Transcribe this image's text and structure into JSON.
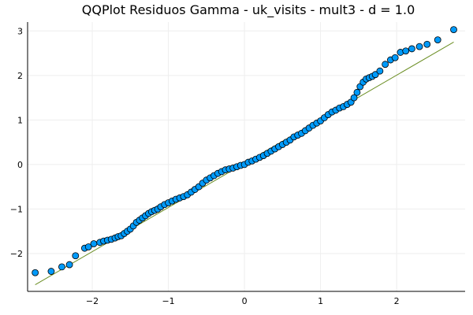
{
  "chart_data": {
    "type": "scatter",
    "title": "QQPlot Residuos Gamma - uk_visits - mult3 - d = 1.0",
    "xlabel": "",
    "ylabel": "",
    "xlim": [
      -2.85,
      2.9
    ],
    "ylim": [
      -2.85,
      3.2
    ],
    "xticks": [
      -2,
      -1,
      0,
      1,
      2
    ],
    "xtick_labels": [
      "−2",
      "−1",
      "0",
      "1",
      "2"
    ],
    "yticks": [
      -2,
      -1,
      0,
      1,
      2,
      3
    ],
    "ytick_labels": [
      "−2",
      "−1",
      "0",
      "1",
      "2",
      "3"
    ],
    "grid": true,
    "legend": "none",
    "colors": {
      "points": "#009AFA",
      "point_stroke": "#000000",
      "reference_line": "#6B8E23",
      "grid": "#eeeeee"
    },
    "series": [
      {
        "kind": "points",
        "x": [
          -2.75,
          -2.54,
          -2.4,
          -2.3,
          -2.22,
          -2.1,
          -2.05,
          -1.98,
          -1.9,
          -1.85,
          -1.8,
          -1.75,
          -1.7,
          -1.66,
          -1.62,
          -1.58,
          -1.54,
          -1.5,
          -1.46,
          -1.42,
          -1.38,
          -1.34,
          -1.3,
          -1.26,
          -1.22,
          -1.18,
          -1.14,
          -1.1,
          -1.05,
          -1.0,
          -0.95,
          -0.9,
          -0.85,
          -0.8,
          -0.75,
          -0.7,
          -0.65,
          -0.6,
          -0.55,
          -0.5,
          -0.45,
          -0.4,
          -0.35,
          -0.3,
          -0.25,
          -0.2,
          -0.15,
          -0.1,
          -0.05,
          0.0,
          0.05,
          0.1,
          0.15,
          0.2,
          0.25,
          0.3,
          0.35,
          0.4,
          0.45,
          0.5,
          0.55,
          0.6,
          0.65,
          0.7,
          0.75,
          0.8,
          0.85,
          0.9,
          0.95,
          1.0,
          1.05,
          1.1,
          1.15,
          1.2,
          1.25,
          1.3,
          1.35,
          1.4,
          1.44,
          1.48,
          1.52,
          1.56,
          1.6,
          1.64,
          1.68,
          1.72,
          1.78,
          1.85,
          1.92,
          1.98,
          2.05,
          2.12,
          2.2,
          2.3,
          2.4,
          2.54,
          2.75
        ],
        "y": [
          -2.43,
          -2.4,
          -2.3,
          -2.25,
          -2.05,
          -1.88,
          -1.85,
          -1.78,
          -1.75,
          -1.72,
          -1.7,
          -1.68,
          -1.65,
          -1.62,
          -1.6,
          -1.55,
          -1.5,
          -1.45,
          -1.38,
          -1.3,
          -1.25,
          -1.2,
          -1.15,
          -1.1,
          -1.06,
          -1.03,
          -1.0,
          -0.95,
          -0.9,
          -0.86,
          -0.82,
          -0.78,
          -0.75,
          -0.72,
          -0.68,
          -0.62,
          -0.56,
          -0.5,
          -0.42,
          -0.35,
          -0.3,
          -0.25,
          -0.2,
          -0.16,
          -0.12,
          -0.1,
          -0.08,
          -0.05,
          -0.02,
          0.0,
          0.05,
          0.08,
          0.12,
          0.16,
          0.2,
          0.25,
          0.3,
          0.35,
          0.4,
          0.45,
          0.5,
          0.55,
          0.62,
          0.66,
          0.7,
          0.76,
          0.82,
          0.88,
          0.93,
          0.98,
          1.05,
          1.12,
          1.18,
          1.22,
          1.27,
          1.3,
          1.35,
          1.4,
          1.5,
          1.62,
          1.75,
          1.85,
          1.92,
          1.95,
          1.98,
          2.02,
          2.1,
          2.25,
          2.35,
          2.4,
          2.52,
          2.55,
          2.6,
          2.65,
          2.7,
          2.8,
          3.03
        ]
      },
      {
        "kind": "reference_line",
        "x": [
          -2.75,
          2.75
        ],
        "y": [
          -2.7,
          2.75
        ]
      }
    ]
  }
}
